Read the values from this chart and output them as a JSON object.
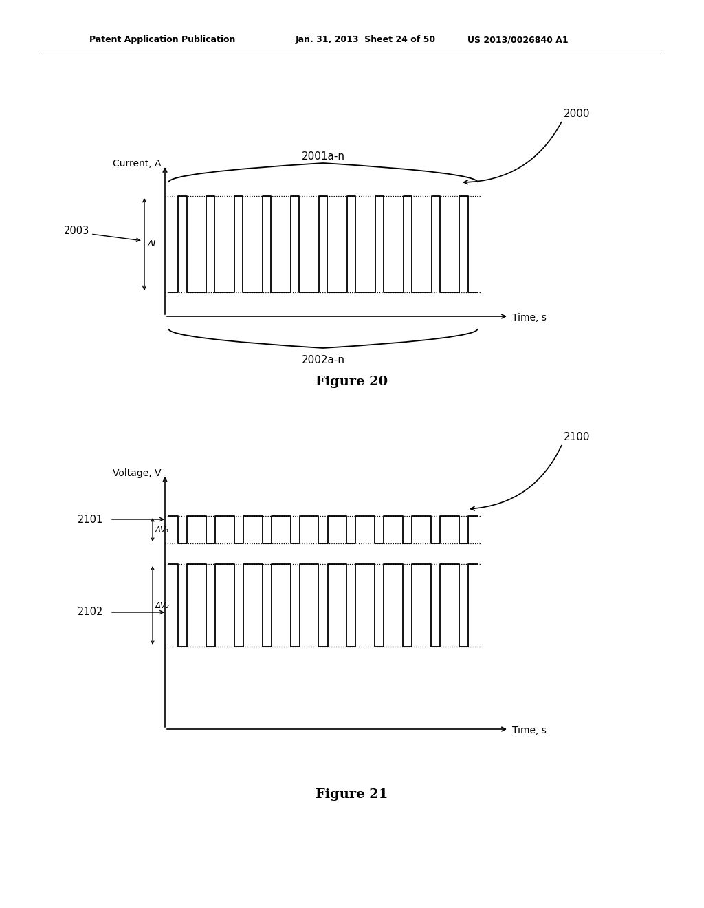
{
  "bg_color": "#ffffff",
  "text_color": "#000000",
  "header_left": "Patent Application Publication",
  "header_mid": "Jan. 31, 2013  Sheet 24 of 50",
  "header_right": "US 2013/0026840 A1",
  "fig20_title": "Figure 20",
  "fig21_title": "Figure 21",
  "label_2000": "2000",
  "label_2001": "2001a-n",
  "label_2002": "2002a-n",
  "label_2003": "2003",
  "label_deltaI": "ΔI",
  "label_current": "Current, A",
  "label_time1": "Time, s",
  "label_2100": "2100",
  "label_2101": "2101",
  "label_2102": "2102",
  "label_deltaV1": "ΔV₁",
  "label_deltaV2": "ΔV₂",
  "label_voltage": "Voltage, V",
  "label_time2": "Time, s",
  "n_pulses_fig20": 11,
  "n_pulses_fig21": 11
}
